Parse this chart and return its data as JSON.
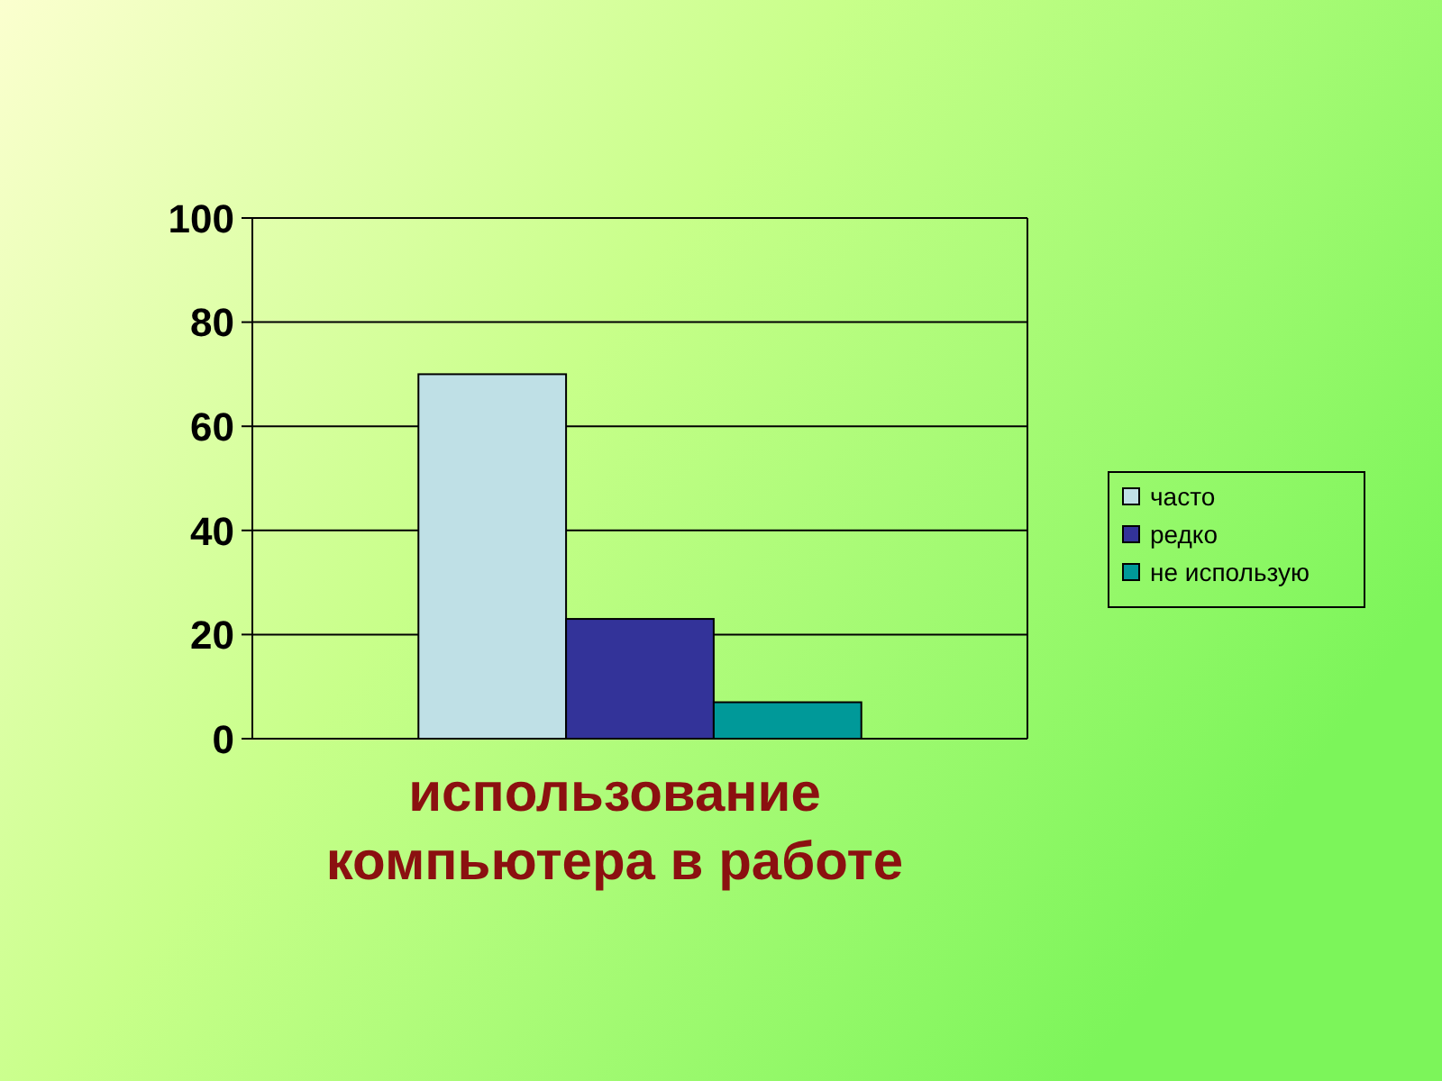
{
  "chart_data": {
    "type": "bar",
    "xlabel": "использование компьютера в работе",
    "categories": [
      null
    ],
    "series": [
      {
        "name": "часто",
        "color": "#bfe0e6",
        "values": [
          70
        ]
      },
      {
        "name": "редко",
        "color": "#333399",
        "values": [
          23
        ]
      },
      {
        "name": "не использую",
        "color": "#009999",
        "values": [
          7
        ]
      }
    ],
    "ylim": [
      0,
      100
    ],
    "yticks": [
      0,
      20,
      40,
      60,
      80,
      100
    ],
    "grid": "y",
    "legend": "right"
  }
}
